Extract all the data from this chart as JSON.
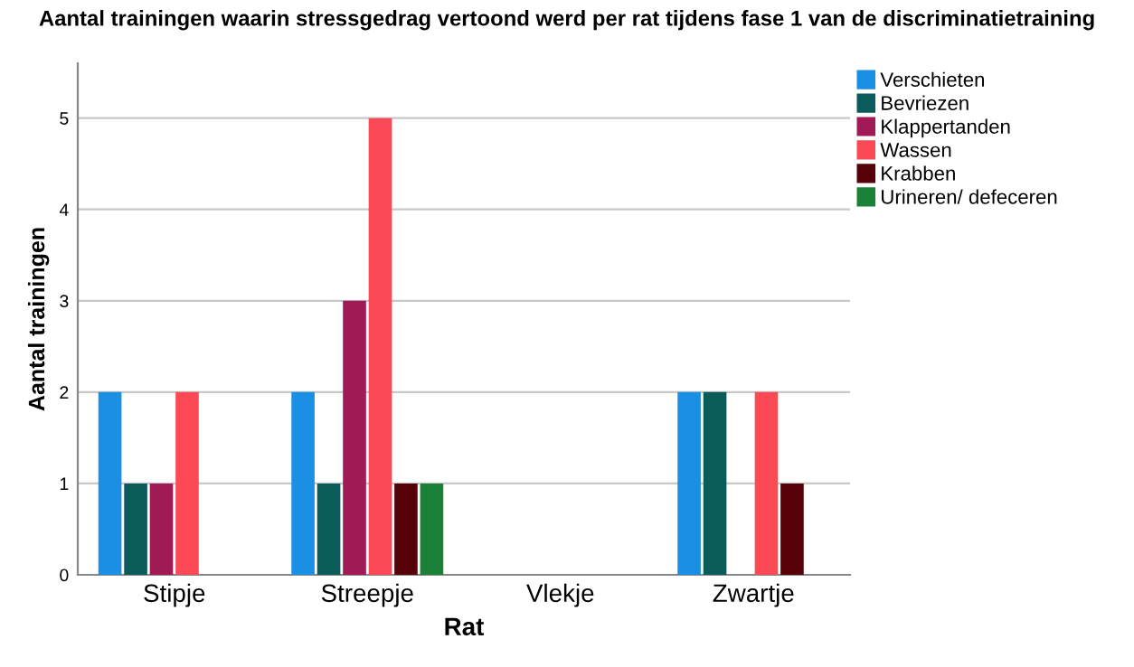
{
  "chart_data": {
    "type": "bar",
    "title": "Aantal trainingen waarin stressgedrag vertoond werd per rat tijdens fase 1 van de discriminatietraining",
    "xlabel": "Rat",
    "ylabel": "Aantal trainingen",
    "categories": [
      "Stipje",
      "Streepje",
      "Vlekje",
      "Zwartje"
    ],
    "series": [
      {
        "name": "Verschieten",
        "color": "#1a8fe3",
        "values": [
          2,
          2,
          0,
          2
        ]
      },
      {
        "name": "Bevriezen",
        "color": "#0a5c5a",
        "values": [
          1,
          1,
          0,
          2
        ]
      },
      {
        "name": "Klappertanden",
        "color": "#a01a55",
        "values": [
          1,
          3,
          0,
          0
        ]
      },
      {
        "name": "Wassen",
        "color": "#fb4a55",
        "values": [
          2,
          5,
          0,
          2
        ]
      },
      {
        "name": "Krabben",
        "color": "#560008",
        "values": [
          0,
          1,
          0,
          1
        ]
      },
      {
        "name": "Urineren/ defeceren",
        "color": "#1a8137",
        "values": [
          0,
          1,
          0,
          0
        ]
      }
    ],
    "ylim": [
      0,
      5.6
    ],
    "yticks": [
      0,
      1,
      2,
      3,
      4,
      5
    ],
    "grid": "y",
    "legend": "top right"
  }
}
